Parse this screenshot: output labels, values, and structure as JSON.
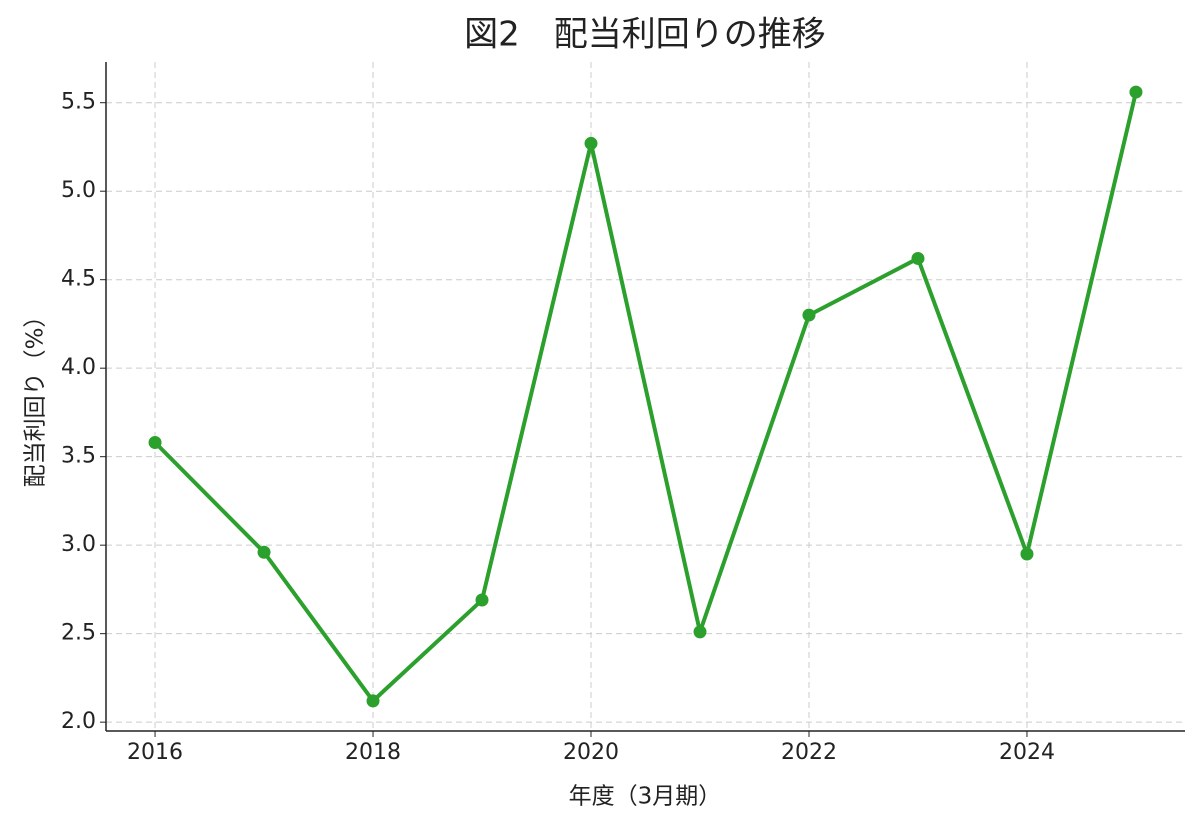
{
  "chart_data": {
    "type": "line",
    "title": "図2　配当利回りの推移",
    "x_label": "年度（3月期）",
    "y_label": "配当利回り（%）",
    "x": [
      2016,
      2017,
      2018,
      2019,
      2020,
      2021,
      2022,
      2023,
      2024,
      2025
    ],
    "series": [
      {
        "color": "#2ca02c",
        "values": [
          3.58,
          2.96,
          2.12,
          2.69,
          5.27,
          2.51,
          4.3,
          4.62,
          2.95,
          5.56
        ]
      }
    ],
    "xlim": [
      2015.55,
      2025.45
    ],
    "xticks": [
      2016,
      2018,
      2020,
      2022,
      2024
    ],
    "ylim": [
      1.95,
      5.73
    ],
    "yticks": [
      {
        "value": 2,
        "label": "2.0"
      },
      2.5,
      {
        "value": 3,
        "label": "3.0"
      },
      3.5,
      {
        "value": 4,
        "label": "4.0"
      },
      4.5,
      {
        "value": 5,
        "label": "5.0"
      },
      5.5
    ],
    "grid": true
  }
}
